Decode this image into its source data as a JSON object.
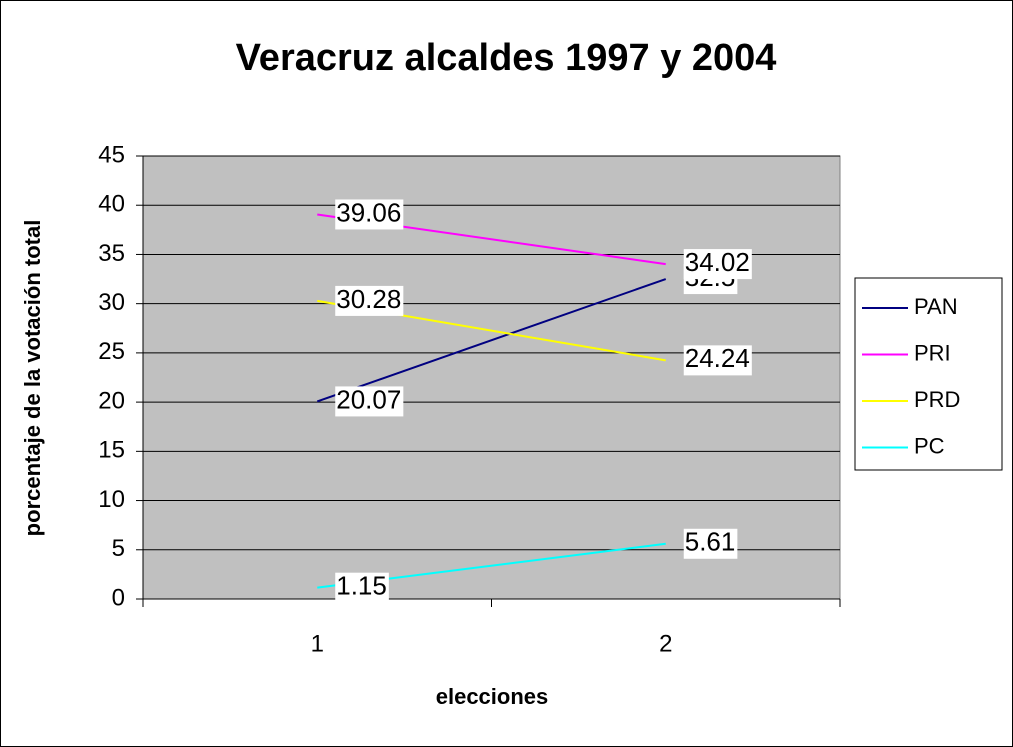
{
  "chart_data": {
    "type": "line",
    "title": "Veracruz alcaldes 1997 y 2004",
    "x_label": "elecciones",
    "y_label": "porcentaje de la votación total",
    "categories": [
      "1",
      "2"
    ],
    "series": [
      {
        "name": "PAN",
        "color": "#000080",
        "values": [
          20.07,
          32.5
        ]
      },
      {
        "name": "PRI",
        "color": "#FF00FF",
        "values": [
          39.06,
          34.02
        ]
      },
      {
        "name": "PRD",
        "color": "#FFFF00",
        "values": [
          30.28,
          24.24
        ]
      },
      {
        "name": "PC",
        "color": "#00FFFF",
        "values": [
          1.15,
          5.61
        ]
      }
    ],
    "ylim": [
      0,
      45
    ],
    "yticks": [
      0,
      5,
      10,
      15,
      20,
      25,
      30,
      35,
      40,
      45
    ],
    "grid": true,
    "legend": "right",
    "plot_background": "#C0C0C0"
  }
}
